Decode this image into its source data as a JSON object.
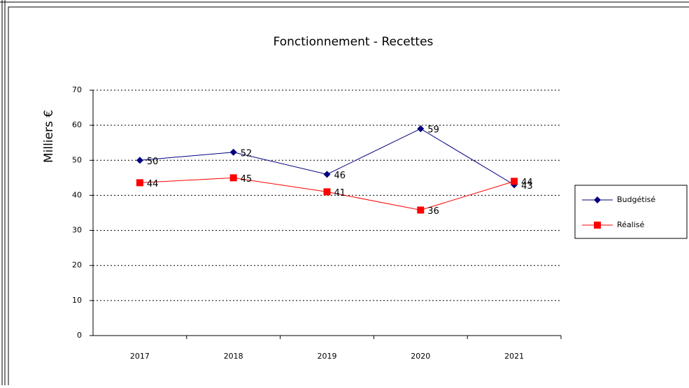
{
  "chart_data": {
    "type": "line",
    "title": "Fonctionnement - Recettes",
    "y_label": "Milliers €",
    "categories": [
      "2017",
      "2018",
      "2019",
      "2020",
      "2021"
    ],
    "series": [
      {
        "name": "Budgétisé",
        "color": "#000080",
        "marker": "diamond",
        "values": [
          50,
          52.3,
          46,
          59,
          43
        ],
        "value_labels": [
          "50",
          "52",
          "46",
          "59",
          "43"
        ]
      },
      {
        "name": "Réalisé",
        "color": "#ff0000",
        "marker": "square",
        "values": [
          43.6,
          45,
          41,
          35.8,
          44
        ],
        "value_labels": [
          "44",
          "45",
          "41",
          "36",
          "44"
        ]
      }
    ],
    "ylim": [
      0,
      70
    ],
    "yticks": [
      0,
      10,
      20,
      30,
      40,
      50,
      60,
      70
    ],
    "grid": true,
    "legend": "right"
  }
}
